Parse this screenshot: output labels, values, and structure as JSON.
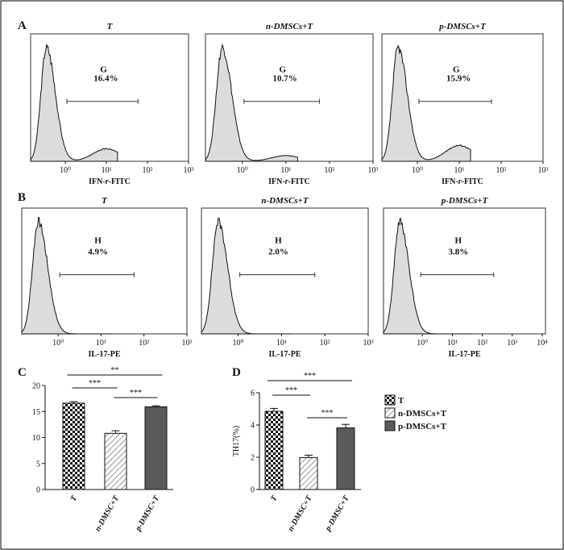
{
  "figure_border_color": "#000000",
  "panels": {
    "A": {
      "letter": "A",
      "xlabel": "IFN-r-FITC",
      "xlabel_parts": [
        "IFN-",
        "r",
        "-FITC"
      ],
      "plots": [
        {
          "title": "T",
          "gate": "G",
          "percent": "16.4%",
          "xticks": [
            "10⁰",
            "10¹",
            "10²",
            "10³"
          ],
          "second_peak": 0.11
        },
        {
          "title": "n-DMSCs+T",
          "gate": "G",
          "percent": "10.7%",
          "xticks": [
            "10⁰",
            "10¹",
            "10²",
            "10³"
          ],
          "second_peak": 0.05
        },
        {
          "title": "p-DMSCs+T",
          "gate": "G",
          "percent": "15.9%",
          "xticks": [
            "10⁰",
            "10¹",
            "10²",
            "10³"
          ],
          "second_peak": 0.14
        }
      ]
    },
    "B": {
      "letter": "B",
      "xlabel": "IL-17-PE",
      "plots": [
        {
          "title": "T",
          "gate": "H",
          "percent": "4.9%",
          "xticks": [
            "10⁰",
            "10¹",
            "10²",
            "10³"
          ]
        },
        {
          "title": "n-DMSCs+T",
          "gate": "H",
          "percent": "2.0%",
          "xticks": [
            "10⁰",
            "10¹",
            "10²",
            "10³"
          ]
        },
        {
          "title": "p-DMSCs+T",
          "gate": "H",
          "percent": "3.8%",
          "xticks": [
            "10⁰",
            "10¹",
            "10²",
            "10³",
            "10⁴"
          ]
        }
      ]
    }
  },
  "chart_data": [
    {
      "type": "bar",
      "panel": "C",
      "categories": [
        "T",
        "n-DMSC+T",
        "p-DMSC+T"
      ],
      "values": [
        16.6,
        10.8,
        15.9
      ],
      "errors": [
        0.3,
        0.5,
        0.2
      ],
      "ylim": [
        0,
        20
      ],
      "yticks": [
        "0",
        "5",
        "10",
        "15",
        "20"
      ],
      "ylabel": "",
      "significance": [
        {
          "from": 0,
          "to": 2,
          "label": "**"
        },
        {
          "from": 0,
          "to": 1,
          "label": "***"
        },
        {
          "from": 1,
          "to": 2,
          "label": "***"
        }
      ]
    },
    {
      "type": "bar",
      "panel": "D",
      "categories": [
        "T",
        "n-DMSC+T",
        "p-DMSC+T"
      ],
      "values": [
        4.85,
        1.98,
        3.82
      ],
      "errors": [
        0.18,
        0.15,
        0.22
      ],
      "ylim": [
        0,
        6
      ],
      "yticks": [
        "0",
        "2",
        "4",
        "6"
      ],
      "ylabel": "TH17(%)",
      "significance": [
        {
          "from": 0,
          "to": 2,
          "label": "***"
        },
        {
          "from": 0,
          "to": 1,
          "label": "***"
        },
        {
          "from": 1,
          "to": 2,
          "label": "***"
        }
      ]
    }
  ],
  "legend": {
    "placement": "right",
    "items": [
      {
        "label": "T",
        "pattern": "checker"
      },
      {
        "label": "n-DMSCs+T",
        "pattern": "hatch"
      },
      {
        "label": "p-DMSCs+T",
        "pattern": "solid"
      }
    ]
  },
  "colors": {
    "hist_fill": "#dcdcdc",
    "bar_dark": "#5a5a5a",
    "ink": "#111111"
  }
}
